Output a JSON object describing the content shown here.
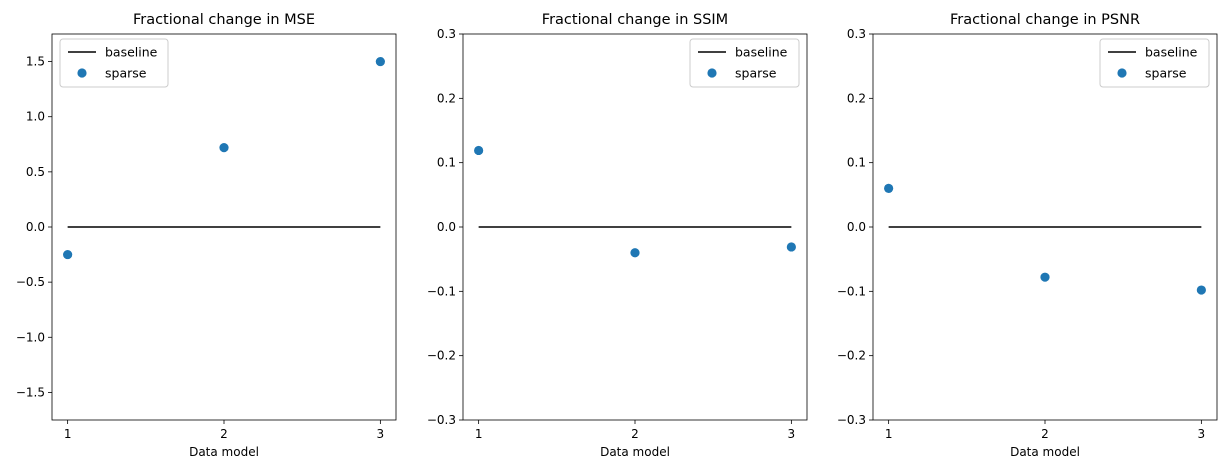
{
  "chart_data": [
    {
      "type": "scatter",
      "title": "Fractional change in MSE",
      "xlabel": "Data model",
      "ylabel": "",
      "xticks": [
        1,
        2,
        3
      ],
      "ylim": [
        -1.75,
        1.75
      ],
      "yticks": [
        -1.5,
        -1.0,
        -0.5,
        0.0,
        0.5,
        1.0,
        1.5
      ],
      "yticklabels": [
        "−1.5",
        "−1.0",
        "−0.5",
        "0.0",
        "0.5",
        "1.0",
        "1.5"
      ],
      "series": [
        {
          "name": "baseline",
          "kind": "line",
          "color": "#000000",
          "x": [
            1,
            2,
            3
          ],
          "values": [
            0,
            0,
            0
          ]
        },
        {
          "name": "sparse",
          "kind": "scatter",
          "color": "#1f77b4",
          "x": [
            1,
            2,
            3
          ],
          "values": [
            -0.25,
            0.72,
            1.5
          ]
        }
      ],
      "legend": "top-left",
      "grid": false
    },
    {
      "type": "scatter",
      "title": "Fractional change in SSIM",
      "xlabel": "Data model",
      "ylabel": "",
      "xticks": [
        1,
        2,
        3
      ],
      "ylim": [
        -0.3,
        0.3
      ],
      "yticks": [
        -0.3,
        -0.2,
        -0.1,
        0.0,
        0.1,
        0.2,
        0.3
      ],
      "yticklabels": [
        "−0.3",
        "−0.2",
        "−0.1",
        "0.0",
        "0.1",
        "0.2",
        "0.3"
      ],
      "series": [
        {
          "name": "baseline",
          "kind": "line",
          "color": "#000000",
          "x": [
            1,
            2,
            3
          ],
          "values": [
            0,
            0,
            0
          ]
        },
        {
          "name": "sparse",
          "kind": "scatter",
          "color": "#1f77b4",
          "x": [
            1,
            2,
            3
          ],
          "values": [
            0.119,
            -0.04,
            -0.031
          ]
        }
      ],
      "legend": "top-right",
      "grid": false
    },
    {
      "type": "scatter",
      "title": "Fractional change in PSNR",
      "xlabel": "Data model",
      "ylabel": "",
      "xticks": [
        1,
        2,
        3
      ],
      "ylim": [
        -0.3,
        0.3
      ],
      "yticks": [
        -0.3,
        -0.2,
        -0.1,
        0.0,
        0.1,
        0.2,
        0.3
      ],
      "yticklabels": [
        "−0.3",
        "−0.2",
        "−0.1",
        "0.0",
        "0.1",
        "0.2",
        "0.3"
      ],
      "series": [
        {
          "name": "baseline",
          "kind": "line",
          "color": "#000000",
          "x": [
            1,
            2,
            3
          ],
          "values": [
            0,
            0,
            0
          ]
        },
        {
          "name": "sparse",
          "kind": "scatter",
          "color": "#1f77b4",
          "x": [
            1,
            2,
            3
          ],
          "values": [
            0.06,
            -0.078,
            -0.098
          ]
        }
      ],
      "legend": "top-right",
      "grid": false
    }
  ]
}
